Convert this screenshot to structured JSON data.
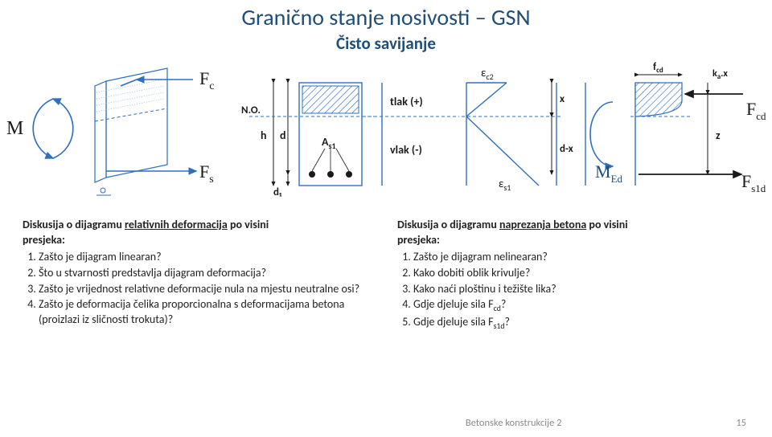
{
  "title": "Granično stanje nosivosti – GSN",
  "subtitle": "Čisto savijanje",
  "diagram": {
    "colors": {
      "blue": "#2e6fbf",
      "blue_light": "#8fb3e0",
      "blue_accent": "#3a7ed0",
      "grey": "#8a8a8a",
      "black": "#1a1a1a",
      "text": "#1f4e79"
    },
    "labels": {
      "M": "M",
      "Fc": "F",
      "Fc_sub": "c",
      "Fs": "F",
      "Fs_sub": "s",
      "NO": "N.O.",
      "h": "h",
      "d": "d",
      "d1": "d₁",
      "As1": "A",
      "As1_sub": "s1",
      "tlak": "tlak (+)",
      "vlak": "vlak (-)",
      "epsc2": "ε",
      "epsc2_sub": "c2",
      "eps_s1": "ε",
      "eps_s1_sub": "s1",
      "x": "x",
      "dx": "d-x",
      "MEd": "M",
      "MEd_sub": "Ed",
      "fcd": "f",
      "fcd_sub": "cd",
      "kax": "k",
      "kax_a": "a",
      "kax_x": ".x",
      "Fcd": "F",
      "Fcd_sub": "cd",
      "z": "z",
      "Fs1d": "F",
      "Fs1d_sub": "s1d"
    }
  },
  "left": {
    "title_prefix": "Diskusija o dijagramu ",
    "title_under": "relativnih deformacija",
    "title_suffix": " po visini",
    "presjeka": "presjeka:",
    "items": [
      "Zašto je dijagram linearan?",
      "Što u stvarnosti predstavlja dijagram deformacija?",
      "Zašto je vrijednost relativne deformacije nula na mjestu neutralne osi?",
      "Zašto je deformacija čelika proporcionalna s deformacijama betona (proizlazi iz sličnosti trokuta)?"
    ]
  },
  "right": {
    "title_prefix": "Diskusija o dijagramu ",
    "title_under": "naprezanja betona",
    "title_suffix": " po visini",
    "presjeka": "presjeka:",
    "items_raw": [
      "Zašto je dijagram nelinearan?",
      "Kako dobiti oblik krivulje?",
      "Kako naći ploštinu i težište lika?",
      "Gdje djeluje sila F<sub>cd</sub>?",
      "Gdje djeluje sila F<sub>s1d</sub>?"
    ]
  },
  "footer": {
    "course": "Betonske konstrukcije 2",
    "page": "15"
  }
}
